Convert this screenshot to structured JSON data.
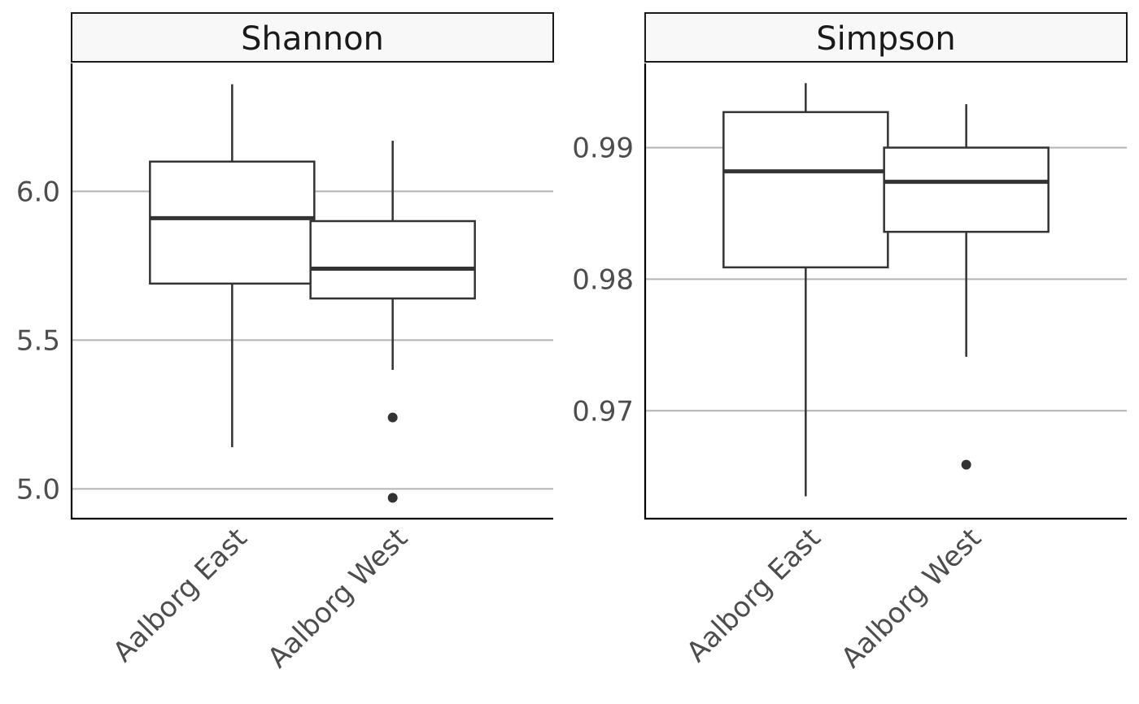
{
  "chart_data": [
    {
      "type": "box",
      "panel_title": "Shannon",
      "ylim": [
        4.9,
        6.43
      ],
      "yticks": [
        5.0,
        5.5,
        6.0
      ],
      "ytick_labels": [
        "5.0",
        "5.5",
        "6.0"
      ],
      "grid": "horizontal major",
      "categories": [
        "Aalborg East",
        "Aalborg West"
      ],
      "boxes": [
        {
          "category": "Aalborg East",
          "whisker_low": 5.14,
          "q1": 5.69,
          "median": 5.91,
          "q3": 6.1,
          "whisker_high": 6.36,
          "outliers": []
        },
        {
          "category": "Aalborg West",
          "whisker_low": 5.4,
          "q1": 5.64,
          "median": 5.74,
          "q3": 5.9,
          "whisker_high": 6.17,
          "outliers": [
            5.24,
            4.97
          ]
        }
      ]
    },
    {
      "type": "box",
      "panel_title": "Simpson",
      "ylim": [
        0.9618,
        0.9964
      ],
      "yticks": [
        0.97,
        0.98,
        0.99
      ],
      "ytick_labels": [
        "0.97",
        "0.98",
        "0.99"
      ],
      "grid": "horizontal major",
      "categories": [
        "Aalborg East",
        "Aalborg West"
      ],
      "boxes": [
        {
          "category": "Aalborg East",
          "whisker_low": 0.9635,
          "q1": 0.9809,
          "median": 0.9882,
          "q3": 0.9927,
          "whisker_high": 0.9949,
          "outliers": []
        },
        {
          "category": "Aalborg West",
          "whisker_low": 0.9741,
          "q1": 0.9836,
          "median": 0.9874,
          "q3": 0.99,
          "whisker_high": 0.9933,
          "outliers": [
            0.9659
          ]
        }
      ]
    }
  ]
}
